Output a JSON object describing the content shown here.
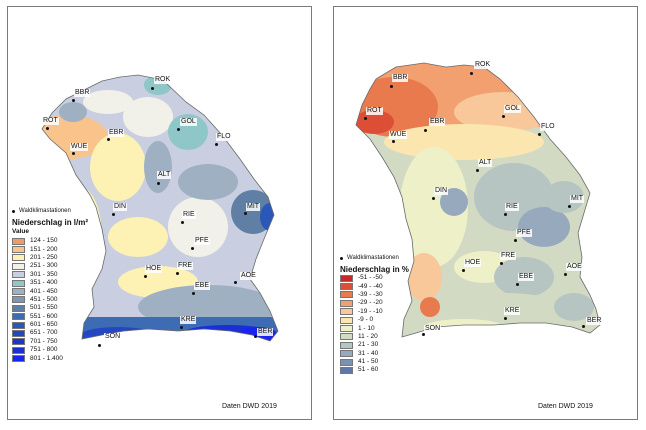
{
  "maps": [
    {
      "id": "left",
      "legend_marker_label": "Waldklimastationen",
      "legend_title": "Niederschlag  in l/m²",
      "legend_subtitle": "Value",
      "credit": "Daten DWD 2019",
      "classes": [
        {
          "label": "124 - 150",
          "color": "#f29a64"
        },
        {
          "label": "151 - 200",
          "color": "#f8c48c"
        },
        {
          "label": "201 - 250",
          "color": "#fdf2b4"
        },
        {
          "label": "251 - 300",
          "color": "#f1f1ea"
        },
        {
          "label": "301 - 350",
          "color": "#c9cfe0"
        },
        {
          "label": "351 - 400",
          "color": "#8fc6c8"
        },
        {
          "label": "401 - 450",
          "color": "#9fb0c2"
        },
        {
          "label": "451 - 500",
          "color": "#7f96ad"
        },
        {
          "label": "501 - 550",
          "color": "#5f7fa5"
        },
        {
          "label": "551 - 600",
          "color": "#3d6cb4"
        },
        {
          "label": "601 - 650",
          "color": "#2a58b8"
        },
        {
          "label": "651 - 700",
          "color": "#2346c2"
        },
        {
          "label": "701 - 750",
          "color": "#1c38c8"
        },
        {
          "label": "751 - 800",
          "color": "#1a2fd6"
        },
        {
          "label": "801 - 1.400",
          "color": "#1a24f0"
        }
      ],
      "stations": [
        "ROK",
        "BBR",
        "GOL",
        "ROT",
        "EBR",
        "WUE",
        "FLO",
        "ALT",
        "DIN",
        "MIT",
        "RIE",
        "PFE",
        "FRE",
        "HOE",
        "AOE",
        "EBE",
        "KRE",
        "SON",
        "BER"
      ]
    },
    {
      "id": "right",
      "legend_marker_label": "Waldklimastationen",
      "legend_title": "Niederschlag in %",
      "credit": "Daten DWD 2019",
      "classes": [
        {
          "label": "-51 - -50",
          "color": "#c8282a"
        },
        {
          "label": "-49 - -40",
          "color": "#dc4f36"
        },
        {
          "label": "-39 - -30",
          "color": "#e97a4e"
        },
        {
          "label": "-29 - -20",
          "color": "#f3a070"
        },
        {
          "label": "-19 - -10",
          "color": "#f8c89a"
        },
        {
          "label": "-9 - 0",
          "color": "#fbe6b0"
        },
        {
          "label": "1 - 10",
          "color": "#eef0c8"
        },
        {
          "label": "11 - 20",
          "color": "#d2dac4"
        },
        {
          "label": "21 - 30",
          "color": "#b6c4c2"
        },
        {
          "label": "31 - 40",
          "color": "#97aabd"
        },
        {
          "label": "41 - 50",
          "color": "#7a91b6"
        },
        {
          "label": "51 - 60",
          "color": "#5d78aa"
        }
      ],
      "stations": [
        "ROK",
        "BBR",
        "ROT",
        "GOL",
        "WUE",
        "EBR",
        "FLO",
        "ALT",
        "DIN",
        "MIT",
        "RIE",
        "PFE",
        "FRE",
        "HOE",
        "AOE",
        "EBE",
        "KRE",
        "SON",
        "BER"
      ]
    }
  ]
}
